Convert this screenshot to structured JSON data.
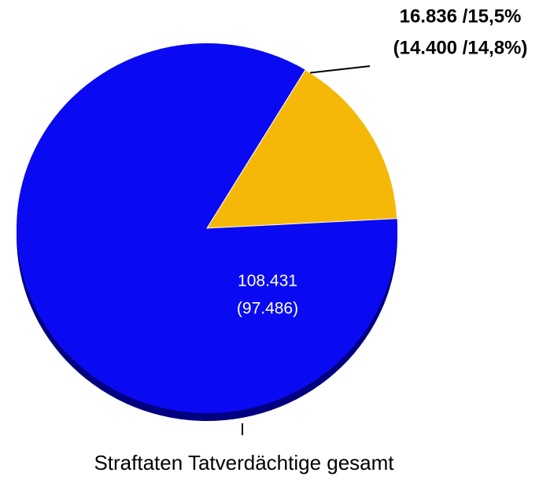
{
  "chart_data": {
    "type": "pie",
    "title": "Straftaten Tatverdächtige gesamt",
    "slices": [
      {
        "value": 108431,
        "value_label": "108.431",
        "previous": 97486,
        "previous_label": "(97.486)",
        "color": "#0a0af2",
        "edge_color": "#000080"
      },
      {
        "value": 16836,
        "percent": 15.5,
        "value_label": "16.836 /15,5%",
        "previous": 14400,
        "previous_percent": 14.8,
        "previous_label": "(14.400 /14,8%)",
        "color": "#f5b808"
      }
    ]
  }
}
